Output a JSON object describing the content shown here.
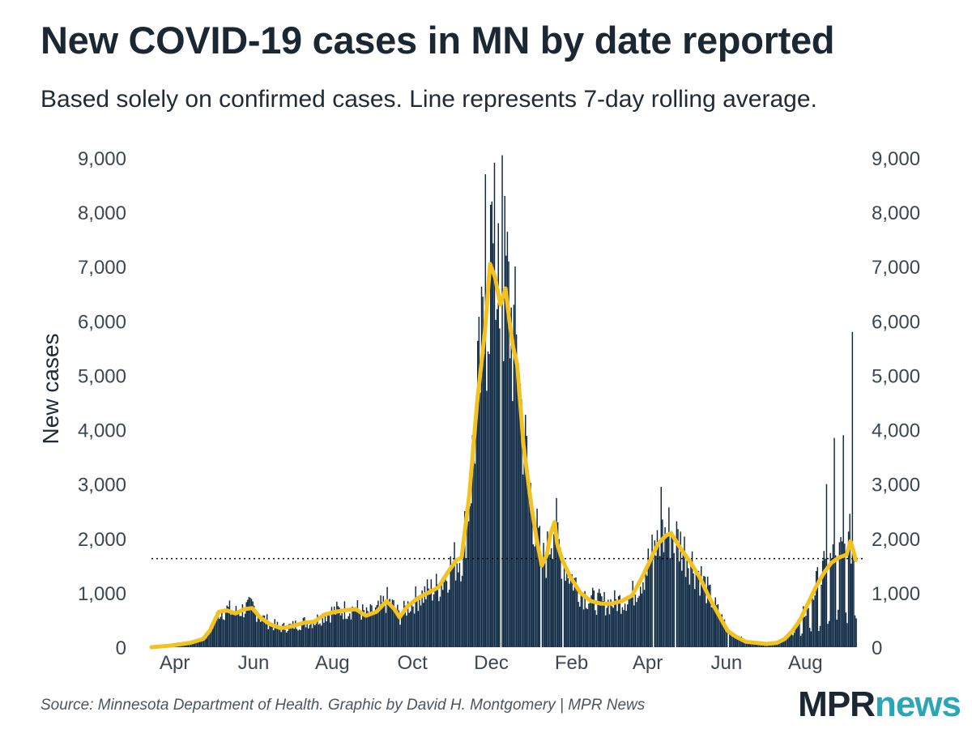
{
  "header": {
    "title": "New COVID-19 cases in MN by date reported",
    "subtitle": "Based solely on confirmed cases. Line represents 7-day rolling average."
  },
  "footer": {
    "source": "Source: Minnesota Department of Health. Graphic by David H. Montgomery | MPR News"
  },
  "logo": {
    "part1": "MPR",
    "part2": "news"
  },
  "colors": {
    "bar": "#0f2a44",
    "line": "#f4c21f",
    "reference": "#000000",
    "text": "#1f2b36",
    "logo_dark": "#1b2733",
    "logo_accent": "#2aa6b7"
  },
  "chart_data": {
    "type": "bar",
    "title": "New COVID-19 cases in MN by date reported",
    "xlabel": "",
    "ylabel": "New cases",
    "ylim": [
      0,
      9000
    ],
    "xlim_days": [
      0,
      546
    ],
    "yticks": [
      0,
      1000,
      2000,
      3000,
      4000,
      5000,
      6000,
      7000,
      8000,
      9000
    ],
    "ytick_labels": [
      "0",
      "1,000",
      "2,000",
      "3,000",
      "4,000",
      "5,000",
      "6,000",
      "7,000",
      "8,000",
      "9,000"
    ],
    "xticks": [
      {
        "label": "Apr",
        "day": 18
      },
      {
        "label": "Jun",
        "day": 79
      },
      {
        "label": "Aug",
        "day": 140
      },
      {
        "label": "Oct",
        "day": 202
      },
      {
        "label": "Dec",
        "day": 263
      },
      {
        "label": "Feb",
        "day": 325
      },
      {
        "label": "Apr",
        "day": 384
      },
      {
        "label": "Jun",
        "day": 445
      },
      {
        "label": "Aug",
        "day": 506
      }
    ],
    "reference_line": {
      "value": 1630,
      "style": "dotted"
    },
    "series": [
      {
        "name": "Daily new cases",
        "type": "bar"
      },
      {
        "name": "7-day rolling average",
        "type": "line"
      }
    ],
    "rolling_avg_points": [
      [
        0,
        0
      ],
      [
        15,
        30
      ],
      [
        30,
        80
      ],
      [
        40,
        150
      ],
      [
        45,
        300
      ],
      [
        52,
        650
      ],
      [
        58,
        680
      ],
      [
        65,
        620
      ],
      [
        72,
        700
      ],
      [
        78,
        720
      ],
      [
        84,
        550
      ],
      [
        92,
        420
      ],
      [
        100,
        350
      ],
      [
        108,
        380
      ],
      [
        118,
        450
      ],
      [
        126,
        470
      ],
      [
        134,
        600
      ],
      [
        142,
        650
      ],
      [
        150,
        680
      ],
      [
        158,
        700
      ],
      [
        166,
        580
      ],
      [
        174,
        650
      ],
      [
        182,
        850
      ],
      [
        188,
        700
      ],
      [
        192,
        550
      ],
      [
        198,
        750
      ],
      [
        206,
        900
      ],
      [
        214,
        1000
      ],
      [
        222,
        1100
      ],
      [
        230,
        1400
      ],
      [
        236,
        1600
      ],
      [
        240,
        1650
      ],
      [
        246,
        2800
      ],
      [
        252,
        4500
      ],
      [
        258,
        5800
      ],
      [
        262,
        7050
      ],
      [
        266,
        6800
      ],
      [
        270,
        6300
      ],
      [
        274,
        6600
      ],
      [
        277,
        6000
      ],
      [
        280,
        5500
      ],
      [
        283,
        5200
      ],
      [
        288,
        3700
      ],
      [
        294,
        2600
      ],
      [
        298,
        2000
      ],
      [
        302,
        1500
      ],
      [
        306,
        1700
      ],
      [
        309,
        2100
      ],
      [
        312,
        2300
      ],
      [
        314,
        1900
      ],
      [
        318,
        1600
      ],
      [
        324,
        1300
      ],
      [
        332,
        1000
      ],
      [
        340,
        850
      ],
      [
        348,
        800
      ],
      [
        356,
        800
      ],
      [
        364,
        850
      ],
      [
        372,
        950
      ],
      [
        380,
        1300
      ],
      [
        386,
        1600
      ],
      [
        392,
        1900
      ],
      [
        398,
        2050
      ],
      [
        402,
        2100
      ],
      [
        406,
        1950
      ],
      [
        410,
        1800
      ],
      [
        416,
        1600
      ],
      [
        424,
        1300
      ],
      [
        432,
        900
      ],
      [
        440,
        550
      ],
      [
        446,
        300
      ],
      [
        452,
        200
      ],
      [
        460,
        100
      ],
      [
        468,
        80
      ],
      [
        476,
        60
      ],
      [
        484,
        80
      ],
      [
        490,
        150
      ],
      [
        496,
        300
      ],
      [
        502,
        500
      ],
      [
        508,
        800
      ],
      [
        514,
        1100
      ],
      [
        520,
        1350
      ],
      [
        526,
        1550
      ],
      [
        532,
        1650
      ],
      [
        538,
        1700
      ],
      [
        541,
        1950
      ],
      [
        543,
        1800
      ],
      [
        545,
        1600
      ]
    ],
    "bar_spikes": [
      {
        "day": 258,
        "value": 8700
      },
      {
        "day": 263,
        "value": 8200
      },
      {
        "day": 268,
        "value": 7800
      },
      {
        "day": 271,
        "value": 9050
      },
      {
        "day": 542,
        "value": 5800
      },
      {
        "day": 535,
        "value": 3900
      },
      {
        "day": 528,
        "value": 3850
      },
      {
        "day": 522,
        "value": 3000
      },
      {
        "day": 394,
        "value": 2950
      }
    ],
    "bar_gaps": [
      270,
      301,
      318,
      388,
      405,
      446
    ],
    "bar_count": 546
  }
}
